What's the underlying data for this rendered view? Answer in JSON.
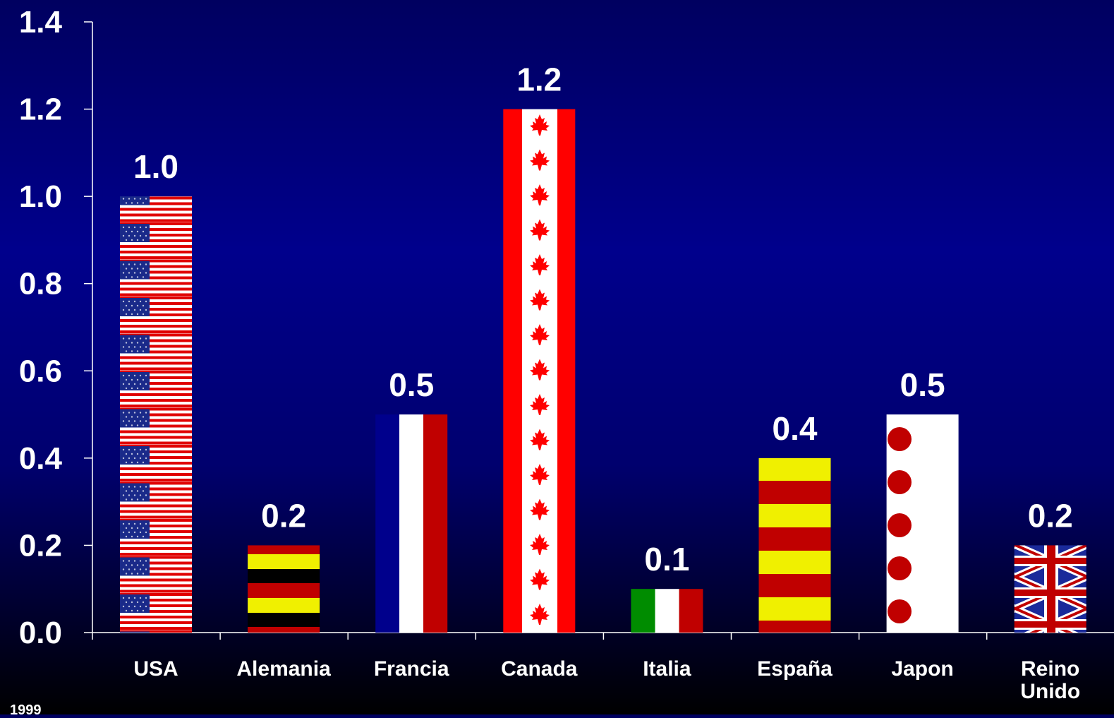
{
  "chart_data": {
    "type": "bar",
    "categories": [
      "USA",
      "Alemania",
      "Francia",
      "Canada",
      "Italia",
      "España",
      "Japon",
      "Reino Unido"
    ],
    "values": [
      1.0,
      0.2,
      0.5,
      1.2,
      0.1,
      0.4,
      0.5,
      0.2
    ],
    "value_labels": [
      "1.0",
      "0.2",
      "0.5",
      "1.2",
      "0.1",
      "0.4",
      "0.5",
      "0.2"
    ],
    "bar_patterns": [
      "usa-flag",
      "germany-flag",
      "france-flag",
      "canada-flag",
      "italy-flag",
      "spain-flag",
      "japan-flag",
      "uk-flag"
    ],
    "y_ticks": [
      "0.0",
      "0.2",
      "0.4",
      "0.6",
      "0.8",
      "1.0",
      "1.2",
      "1.4"
    ],
    "ylim": [
      0,
      1.4
    ],
    "title": "",
    "xlabel": "",
    "ylabel": "",
    "grid": false,
    "legend": "none"
  },
  "footnote": "1999",
  "colors": {
    "text": "#ffffff",
    "axis": "#ffffff",
    "flag_red": "#c00000",
    "flag_bright_red": "#ff0000",
    "flag_blue": "#00008c",
    "flag_white": "#ffffff",
    "flag_black": "#000000",
    "flag_yellow": "#f0f000",
    "flag_green": "#008c00"
  }
}
